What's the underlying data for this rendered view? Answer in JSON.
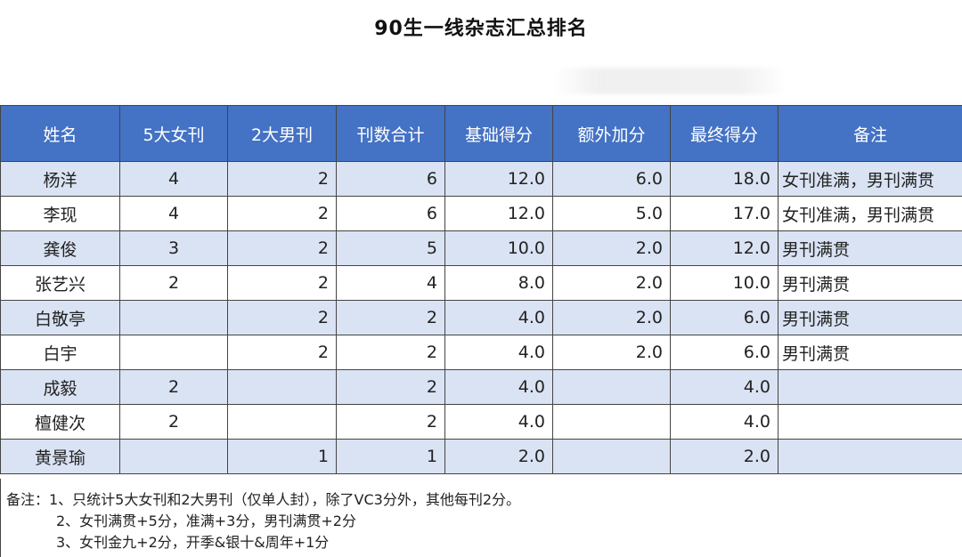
{
  "title": "90生一线杂志汇总排名",
  "table": {
    "headers": [
      "姓名",
      "5大女刊",
      "2大男刊",
      "刊数合计",
      "基础得分",
      "额外加分",
      "最终得分",
      "备注"
    ],
    "rows": [
      [
        "杨洋",
        "4",
        "2",
        "6",
        "12.0",
        "6.0",
        "18.0",
        "女刊准满，男刊满贯"
      ],
      [
        "李现",
        "4",
        "2",
        "6",
        "12.0",
        "5.0",
        "17.0",
        "女刊准满，男刊满贯"
      ],
      [
        "龚俊",
        "3",
        "2",
        "5",
        "10.0",
        "2.0",
        "12.0",
        "男刊满贯"
      ],
      [
        "张艺兴",
        "2",
        "2",
        "4",
        "8.0",
        "2.0",
        "10.0",
        "男刊满贯"
      ],
      [
        "白敬亭",
        "",
        "2",
        "2",
        "4.0",
        "2.0",
        "6.0",
        "男刊满贯"
      ],
      [
        "白宇",
        "",
        "2",
        "2",
        "4.0",
        "2.0",
        "6.0",
        "男刊满贯"
      ],
      [
        "成毅",
        "2",
        "",
        "2",
        "4.0",
        "",
        "4.0",
        ""
      ],
      [
        "檀健次",
        "2",
        "",
        "2",
        "4.0",
        "",
        "4.0",
        ""
      ],
      [
        "黄景瑜",
        "",
        "1",
        "1",
        "2.0",
        "",
        "2.0",
        ""
      ]
    ]
  },
  "notes": [
    "备注：1、只统计5大女刊和2大男刊（仅单人封），除了VC3分外，其他每刊2分。",
    "2、女刊满贯+5分，准满+3分，男刊满贯+2分",
    "3、女刊金九+2分，开季&银十&周年+1分"
  ]
}
